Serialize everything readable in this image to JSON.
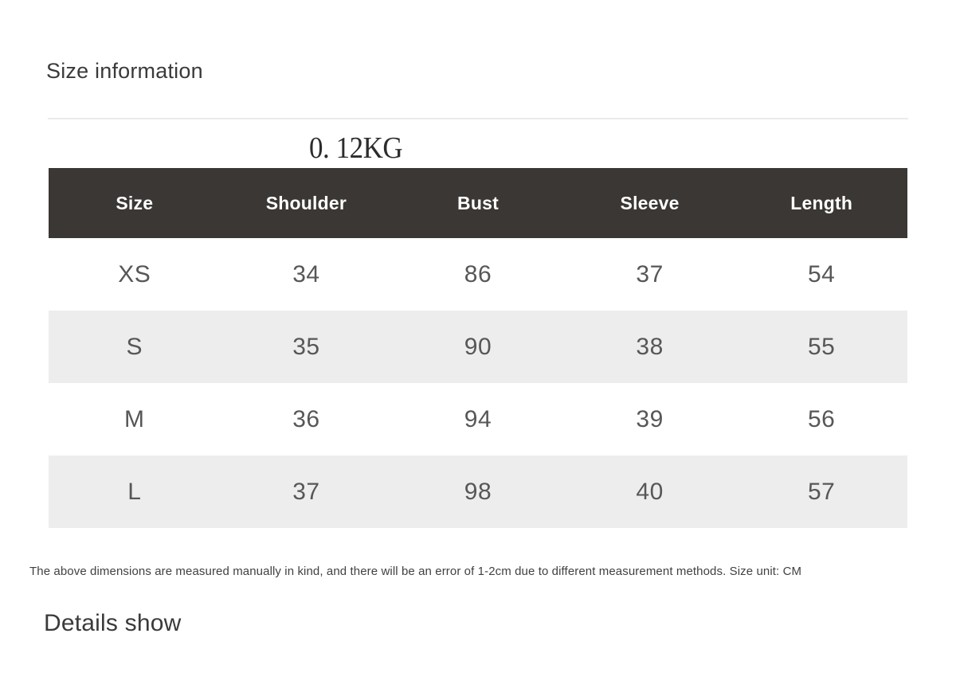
{
  "sections": {
    "size_info": {
      "title": "Size information"
    },
    "details": {
      "title": "Details show"
    }
  },
  "weight": {
    "text": "0. 12KG"
  },
  "size_table": {
    "columns": [
      "Size",
      "Shoulder",
      "Bust",
      "Sleeve",
      "Length"
    ],
    "rows": [
      [
        "XS",
        "34",
        "86",
        "37",
        "54"
      ],
      [
        "S",
        "35",
        "90",
        "38",
        "55"
      ],
      [
        "M",
        "36",
        "94",
        "39",
        "56"
      ],
      [
        "L",
        "37",
        "98",
        "40",
        "57"
      ]
    ]
  },
  "note": {
    "text": "The above dimensions are measured manually in kind, and there will be an error of 1-2cm due to different measurement methods. Size unit: CM"
  },
  "colors": {
    "table_header_bg": "#3a3734",
    "table_header_text": "#ffffff",
    "table_stripe_bg": "#ededed",
    "cell_text": "#57575a",
    "heading_text": "#3a3a3a",
    "divider": "#eceaea"
  }
}
